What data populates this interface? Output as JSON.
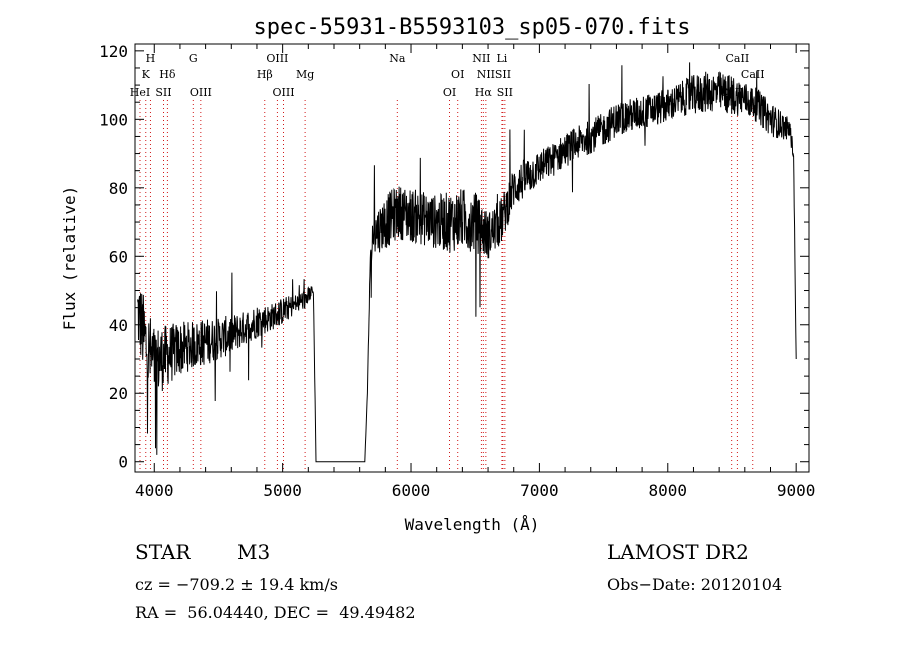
{
  "chart_data": {
    "type": "line",
    "title": "spec-55931-B5593103_sp05-070.fits",
    "xlabel": "Wavelength (Å)",
    "ylabel": "Flux (relative)",
    "xlim": [
      3850,
      9100
    ],
    "ylim": [
      -3,
      122
    ],
    "x_ticks": [
      4000,
      5000,
      6000,
      7000,
      8000,
      9000
    ],
    "y_ticks": [
      0,
      20,
      40,
      60,
      80,
      100,
      120
    ],
    "grid": false,
    "spectrum_anchors": {
      "x": [
        3870,
        3950,
        4000,
        4100,
        4200,
        4300,
        4400,
        4500,
        4600,
        4700,
        4800,
        4900,
        5000,
        5100,
        5200,
        5230,
        5240,
        5260,
        5640,
        5660,
        5680,
        5700,
        5800,
        5900,
        6000,
        6100,
        6200,
        6300,
        6400,
        6500,
        6550,
        6600,
        6700,
        6800,
        6900,
        7000,
        7100,
        7200,
        7300,
        7400,
        7500,
        7600,
        7700,
        7800,
        7900,
        8000,
        8100,
        8200,
        8300,
        8400,
        8500,
        8600,
        8700,
        8800,
        8900,
        8950,
        8980,
        9000
      ],
      "y": [
        44,
        32,
        29,
        31,
        33,
        34,
        35,
        36,
        37,
        39,
        41,
        42,
        44,
        46,
        48,
        50,
        49,
        0,
        0,
        20,
        55,
        66,
        70,
        73,
        72,
        71,
        70,
        70,
        71,
        70,
        68,
        66,
        70,
        80,
        83,
        86,
        88,
        91,
        93,
        95,
        97,
        100,
        101,
        102,
        103,
        104,
        106,
        107,
        108,
        108,
        107,
        106,
        104,
        100,
        98,
        97,
        90,
        30
      ],
      "noise_amplitude": [
        11,
        13,
        11,
        9,
        8,
        7,
        7,
        6,
        6,
        5,
        5,
        4,
        4,
        3,
        3,
        2,
        0,
        0,
        0,
        0,
        4,
        6,
        8,
        8,
        8,
        8,
        8,
        9,
        9,
        9,
        8,
        7,
        7,
        6,
        6,
        5,
        5,
        5,
        5,
        5,
        5,
        5,
        5,
        5,
        5,
        5,
        5,
        6,
        6,
        6,
        6,
        5,
        5,
        5,
        4,
        3,
        2,
        0
      ]
    },
    "spectral_lines": [
      {
        "label": "H",
        "x": 3970,
        "row": 1
      },
      {
        "label": "K",
        "x": 3934,
        "row": 2
      },
      {
        "label": "HeI",
        "x": 3889,
        "row": 3
      },
      {
        "label": "Hδ",
        "x": 4102,
        "row": 2
      },
      {
        "label": "SII",
        "x": 4072,
        "row": 3
      },
      {
        "label": "G",
        "x": 4304,
        "row": 1
      },
      {
        "label": "OIII",
        "x": 4363,
        "row": 3
      },
      {
        "label": "OIII",
        "x": 4959,
        "row": 1
      },
      {
        "label": "Hβ",
        "x": 4861,
        "row": 2
      },
      {
        "label": "OIII",
        "x": 5007,
        "row": 3
      },
      {
        "label": "Mg",
        "x": 5175,
        "row": 2
      },
      {
        "label": "Na",
        "x": 5893,
        "row": 1
      },
      {
        "label": "OI",
        "x": 6364,
        "row": 2
      },
      {
        "label": "OI",
        "x": 6300,
        "row": 3
      },
      {
        "label": "NII",
        "x": 6548,
        "row": 1
      },
      {
        "label": "NII",
        "x": 6583,
        "row": 2
      },
      {
        "label": "Hα",
        "x": 6563,
        "row": 3
      },
      {
        "label": "Li",
        "x": 6708,
        "row": 1
      },
      {
        "label": "SII",
        "x": 6716,
        "row": 2
      },
      {
        "label": "SII",
        "x": 6731,
        "row": 3
      },
      {
        "label": "CaII",
        "x": 8542,
        "row": 1
      },
      {
        "label": "CaII",
        "x": 8662,
        "row": 2
      },
      {
        "label": "CaII",
        "x": 8498,
        "row": 3
      }
    ]
  },
  "footer": {
    "object_type": "STAR",
    "subclass": "M3",
    "survey": "LAMOST DR2",
    "cz": "cz = −709.2 ± 19.4 km/s",
    "obs_date": "Obs−Date: 20120104",
    "radec": "RA =  56.04440, DEC =  49.49482"
  }
}
